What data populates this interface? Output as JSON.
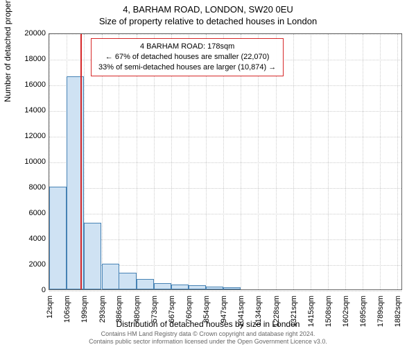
{
  "title_main": "4, BARHAM ROAD, LONDON, SW20 0EU",
  "title_sub": "Size of property relative to detached houses in London",
  "y_axis_label": "Number of detached properties",
  "x_axis_label": "Distribution of detached houses by size in London",
  "footer_line1": "Contains HM Land Registry data © Crown copyright and database right 2024.",
  "footer_line2": "Contains public sector information licensed under the Open Government Licence v3.0.",
  "annotation": {
    "line1": "4 BARHAM ROAD: 178sqm",
    "line2": "← 67% of detached houses are smaller (22,070)",
    "line3": "33% of semi-detached houses are larger (10,874) →"
  },
  "chart": {
    "type": "histogram",
    "background_color": "#ffffff",
    "grid_color": "#cccccc",
    "border_color": "#666666",
    "bar_fill": "#cfe2f3",
    "bar_border": "#4682b4",
    "marker_color": "#d62728",
    "marker_x": 178,
    "xlim": [
      12,
      1910
    ],
    "ylim": [
      0,
      20000
    ],
    "ytick_step": 2000,
    "yticks": [
      0,
      2000,
      4000,
      6000,
      8000,
      10000,
      12000,
      14000,
      16000,
      18000,
      20000
    ],
    "xticks": [
      12,
      106,
      199,
      293,
      386,
      480,
      573,
      667,
      760,
      854,
      947,
      1041,
      1134,
      1228,
      1321,
      1415,
      1508,
      1602,
      1695,
      1789,
      1882
    ],
    "xtick_labels": [
      "12sqm",
      "106sqm",
      "199sqm",
      "293sqm",
      "386sqm",
      "480sqm",
      "573sqm",
      "667sqm",
      "760sqm",
      "854sqm",
      "947sqm",
      "1041sqm",
      "1134sqm",
      "1228sqm",
      "1321sqm",
      "1415sqm",
      "1508sqm",
      "1602sqm",
      "1695sqm",
      "1789sqm",
      "1882sqm"
    ],
    "bar_width_sqm": 93.5,
    "bars_x_start": [
      12,
      106,
      199,
      293,
      386,
      480,
      573,
      667,
      760,
      854,
      947
    ],
    "bars_height": [
      8000,
      16600,
      5200,
      2000,
      1300,
      800,
      500,
      400,
      300,
      200,
      150
    ],
    "label_fontsize": 12,
    "tick_fontsize": 11,
    "title_fontsize": 13,
    "annotation_fontsize": 11
  }
}
